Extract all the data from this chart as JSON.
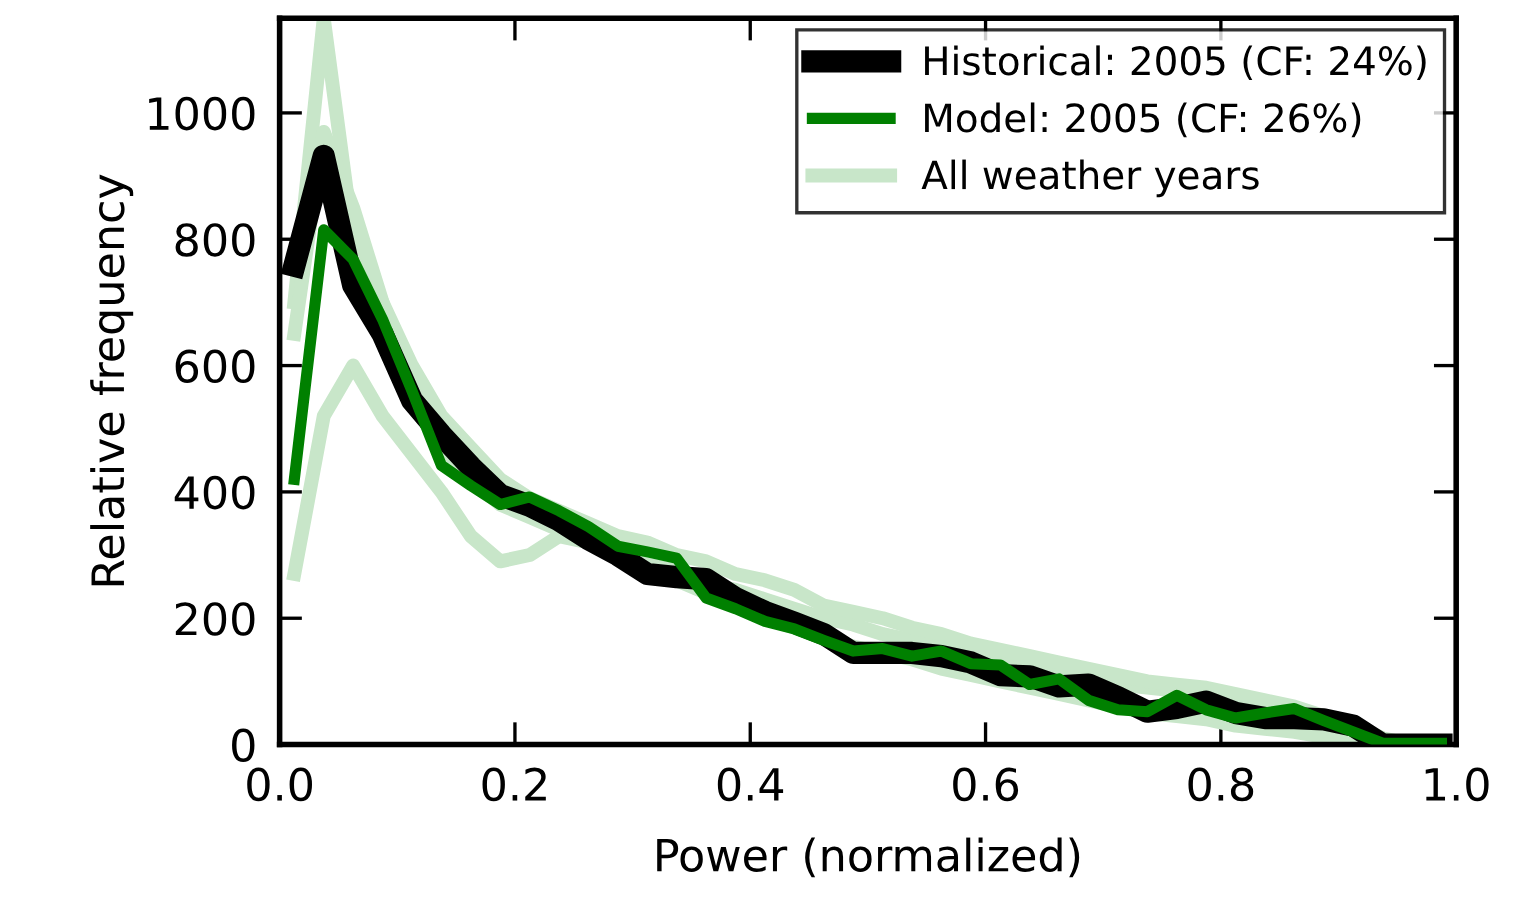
{
  "chart_data": {
    "type": "line",
    "xlabel": "Power (normalized)",
    "ylabel": "Relative frequency",
    "x": [
      0.0125,
      0.0375,
      0.0625,
      0.0875,
      0.1125,
      0.1375,
      0.1625,
      0.1875,
      0.2125,
      0.2375,
      0.2625,
      0.2875,
      0.3125,
      0.3375,
      0.3625,
      0.3875,
      0.4125,
      0.4375,
      0.4625,
      0.4875,
      0.5125,
      0.5375,
      0.5625,
      0.5875,
      0.6125,
      0.6375,
      0.6625,
      0.6875,
      0.7125,
      0.7375,
      0.7625,
      0.7875,
      0.8125,
      0.8375,
      0.8625,
      0.8875,
      0.9125,
      0.9375,
      0.9625,
      0.9875
    ],
    "series": [
      {
        "name": "Historical: 2005 (CF: 24%)",
        "color": "#000000",
        "values": [
          758,
          932,
          727,
          650,
          545,
          490,
          440,
          395,
          378,
          355,
          325,
          300,
          270,
          265,
          262,
          232,
          210,
          193,
          175,
          145,
          145,
          145,
          140,
          130,
          110,
          108,
          92,
          95,
          75,
          52,
          58,
          68,
          50,
          42,
          42,
          40,
          30,
          0,
          0,
          0
        ]
      },
      {
        "name": "Model: 2005 (CF: 26%)",
        "color": "#008000",
        "values": [
          420,
          815,
          768,
          673,
          560,
          442,
          410,
          380,
          392,
          370,
          345,
          314,
          305,
          295,
          232,
          215,
          195,
          183,
          165,
          148,
          152,
          140,
          148,
          128,
          126,
          95,
          104,
          70,
          55,
          52,
          78,
          55,
          42,
          50,
          57,
          38,
          20,
          2,
          2,
          2
        ]
      },
      {
        "name": "All weather years",
        "color": "#c8e6c9",
        "values": [
          700,
          1150,
          800,
          700,
          560,
          470,
          420,
          380,
          360,
          340,
          320,
          300,
          285,
          275,
          255,
          245,
          230,
          215,
          200,
          190,
          175,
          165,
          160,
          150,
          140,
          130,
          115,
          105,
          95,
          90,
          85,
          75,
          65,
          55,
          45,
          35,
          20,
          5,
          0,
          0
        ]
      },
      {
        "color": "#c8e6c9",
        "values": [
          270,
          520,
          600,
          520,
          460,
          400,
          330,
          290,
          300,
          330,
          320,
          295,
          280,
          260,
          240,
          220,
          200,
          185,
          170,
          155,
          145,
          135,
          120,
          110,
          100,
          90,
          80,
          70,
          60,
          50,
          45,
          40,
          30,
          25,
          20,
          12,
          5,
          0,
          0,
          0
        ]
      },
      {
        "color": "#c8e6c9",
        "values": [
          650,
          970,
          850,
          700,
          600,
          520,
          470,
          420,
          390,
          370,
          350,
          330,
          320,
          300,
          290,
          270,
          260,
          245,
          220,
          210,
          200,
          185,
          175,
          160,
          150,
          140,
          130,
          120,
          110,
          100,
          95,
          90,
          80,
          70,
          60,
          45,
          30,
          10,
          0,
          0
        ]
      }
    ],
    "xlim": [
      0.0,
      1.0
    ],
    "xticks": [
      {
        "value": 0,
        "label": "0.0"
      },
      0.2,
      0.4,
      0.6,
      0.8,
      {
        "value": 1,
        "label": "1.0"
      }
    ],
    "ylim": [
      0,
      1150
    ],
    "yticks": [
      0,
      200,
      400,
      600,
      800,
      1000
    ],
    "legend": "top right",
    "grid": false,
    "marker": "none",
    "line_style": "solid"
  }
}
